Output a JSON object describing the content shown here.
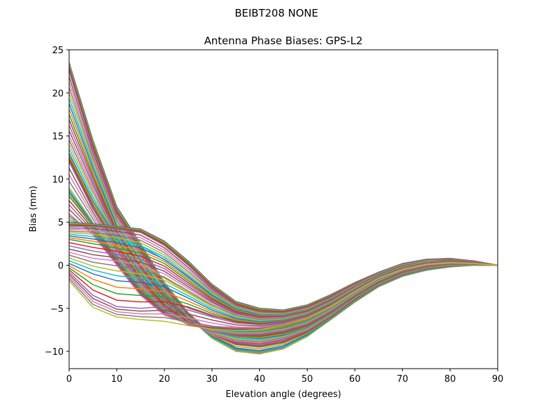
{
  "figure": {
    "suptitle": "BEIBT208        NONE"
  },
  "chart_data": {
    "type": "line",
    "title": "Antenna Phase Biases: GPS-L2",
    "xlabel": "Elevation angle (degrees)",
    "ylabel": "Bias (mm)",
    "xlim": [
      0,
      90
    ],
    "ylim": [
      -12,
      25
    ],
    "xticks": [
      0,
      10,
      20,
      30,
      40,
      50,
      60,
      70,
      80,
      90
    ],
    "yticks": [
      -10,
      -5,
      0,
      5,
      10,
      15,
      20,
      25
    ],
    "xtick_labels": [
      "0",
      "10",
      "20",
      "30",
      "40",
      "50",
      "60",
      "70",
      "80",
      "90"
    ],
    "ytick_labels": [
      "−10",
      "−5",
      "0",
      "5",
      "10",
      "15",
      "20",
      "25"
    ],
    "grid": false,
    "legend": "none",
    "x": [
      0,
      5,
      10,
      15,
      20,
      25,
      30,
      35,
      40,
      45,
      50,
      55,
      60,
      65,
      70,
      75,
      80,
      85,
      90
    ],
    "series_family": {
      "count": 72,
      "note_start_values_range": [
        -1.8,
        23.5
      ],
      "colors": [
        "#1f77b4",
        "#ff7f0e",
        "#2ca02c",
        "#d62728",
        "#9467bd",
        "#8c564b",
        "#e377c2",
        "#7f7f7f",
        "#bcbd22",
        "#17becf"
      ]
    },
    "series": [
      {
        "values": [
          23.5,
          14.5,
          6.8,
          2.5,
          -2.0,
          -5.5,
          -8.0,
          -9.6,
          -10.0,
          -9.5,
          -8.0,
          -6.0,
          -4.0,
          -2.3,
          -1.1,
          -0.4,
          -0.1,
          0.0,
          0.0
        ]
      },
      {
        "values": [
          22.5,
          13.5,
          6.0,
          1.8,
          -2.5,
          -5.8,
          -8.2,
          -9.8,
          -10.2,
          -9.7,
          -8.2,
          -6.2,
          -4.1,
          -2.4,
          -1.2,
          -0.5,
          -0.1,
          0.0,
          0.0
        ]
      },
      {
        "values": [
          20.0,
          12.0,
          5.0,
          1.0,
          -3.0,
          -6.0,
          -8.5,
          -10.0,
          -10.3,
          -9.7,
          -8.3,
          -6.3,
          -4.3,
          -2.5,
          -1.3,
          -0.6,
          -0.2,
          0.0,
          0.0
        ]
      },
      {
        "values": [
          17.5,
          10.5,
          4.0,
          0.0,
          -3.5,
          -6.2,
          -8.0,
          -9.2,
          -9.5,
          -9.0,
          -7.8,
          -6.0,
          -4.0,
          -2.3,
          -1.1,
          -0.4,
          -0.1,
          0.0,
          0.0
        ]
      },
      {
        "values": [
          15.0,
          9.0,
          3.5,
          -0.5,
          -4.0,
          -6.5,
          -8.0,
          -8.8,
          -9.0,
          -8.5,
          -7.5,
          -5.8,
          -3.8,
          -2.2,
          -1.0,
          -0.3,
          0.0,
          0.0,
          0.0
        ]
      },
      {
        "values": [
          13.0,
          7.5,
          3.0,
          -1.0,
          -4.2,
          -6.3,
          -7.6,
          -8.3,
          -8.5,
          -8.1,
          -7.2,
          -5.6,
          -3.7,
          -2.1,
          -0.9,
          -0.2,
          0.1,
          0.1,
          0.0
        ]
      },
      {
        "values": [
          12.0,
          6.5,
          2.0,
          -1.8,
          -4.8,
          -6.7,
          -7.7,
          -8.1,
          -8.1,
          -7.7,
          -6.9,
          -5.4,
          -3.5,
          -1.9,
          -0.7,
          -0.1,
          0.2,
          0.2,
          0.0
        ]
      },
      {
        "values": [
          9.0,
          5.0,
          1.0,
          -2.5,
          -5.2,
          -6.8,
          -7.5,
          -7.8,
          -7.8,
          -7.4,
          -6.6,
          -5.1,
          -3.3,
          -1.7,
          -0.5,
          0.1,
          0.3,
          0.2,
          0.0
        ]
      },
      {
        "values": [
          8.0,
          4.5,
          0.5,
          -3.0,
          -5.5,
          -6.9,
          -7.3,
          -7.5,
          -7.5,
          -7.1,
          -6.3,
          -4.8,
          -3.1,
          -1.5,
          -0.4,
          0.2,
          0.4,
          0.3,
          0.0
        ]
      },
      {
        "values": [
          6.0,
          3.5,
          0.0,
          -3.5,
          -5.8,
          -6.8,
          -7.1,
          -7.2,
          -7.2,
          -6.8,
          -6.0,
          -4.6,
          -2.9,
          -1.3,
          -0.2,
          0.4,
          0.5,
          0.3,
          0.0
        ]
      },
      {
        "values": [
          5.0,
          4.8,
          4.5,
          4.2,
          2.8,
          0.5,
          -2.2,
          -4.2,
          -5.0,
          -5.2,
          -4.6,
          -3.4,
          -2.0,
          -0.8,
          0.2,
          0.7,
          0.8,
          0.5,
          0.0
        ]
      },
      {
        "values": [
          4.5,
          4.5,
          4.2,
          3.8,
          2.3,
          0.0,
          -2.6,
          -4.6,
          -5.4,
          -5.5,
          -4.9,
          -3.7,
          -2.2,
          -0.9,
          0.1,
          0.6,
          0.7,
          0.5,
          0.0
        ]
      },
      {
        "values": [
          3.8,
          3.6,
          3.2,
          2.6,
          1.2,
          -1.0,
          -3.2,
          -4.9,
          -5.6,
          -5.7,
          -5.1,
          -3.9,
          -2.4,
          -1.0,
          0.0,
          0.5,
          0.6,
          0.4,
          0.0
        ]
      },
      {
        "values": [
          3.0,
          2.5,
          2.0,
          1.4,
          0.2,
          -1.8,
          -3.8,
          -5.3,
          -5.9,
          -5.9,
          -5.3,
          -4.0,
          -2.5,
          -1.1,
          -0.1,
          0.4,
          0.6,
          0.4,
          0.0
        ]
      },
      {
        "values": [
          1.5,
          0.8,
          0.5,
          0.0,
          -1.0,
          -2.7,
          -4.4,
          -5.7,
          -6.2,
          -6.1,
          -5.5,
          -4.2,
          -2.6,
          -1.2,
          -0.2,
          0.4,
          0.5,
          0.3,
          0.0
        ]
      },
      {
        "values": [
          0.2,
          -1.0,
          -1.8,
          -2.0,
          -2.5,
          -3.8,
          -5.2,
          -6.2,
          -6.6,
          -6.4,
          -5.7,
          -4.4,
          -2.8,
          -1.3,
          -0.3,
          0.3,
          0.5,
          0.3,
          0.0
        ]
      },
      {
        "values": [
          -0.8,
          -3.5,
          -4.8,
          -5.0,
          -4.8,
          -5.2,
          -6.0,
          -6.7,
          -6.9,
          -6.6,
          -5.9,
          -4.6,
          -2.9,
          -1.4,
          -0.4,
          0.2,
          0.4,
          0.3,
          0.0
        ]
      },
      {
        "values": [
          -1.8,
          -4.9,
          -6.0,
          -6.3,
          -6.5,
          -7.0,
          -7.4,
          -7.6,
          -7.5,
          -7.0,
          -6.2,
          -4.8,
          -3.1,
          -1.5,
          -0.5,
          0.1,
          0.3,
          0.2,
          0.0
        ]
      }
    ]
  }
}
